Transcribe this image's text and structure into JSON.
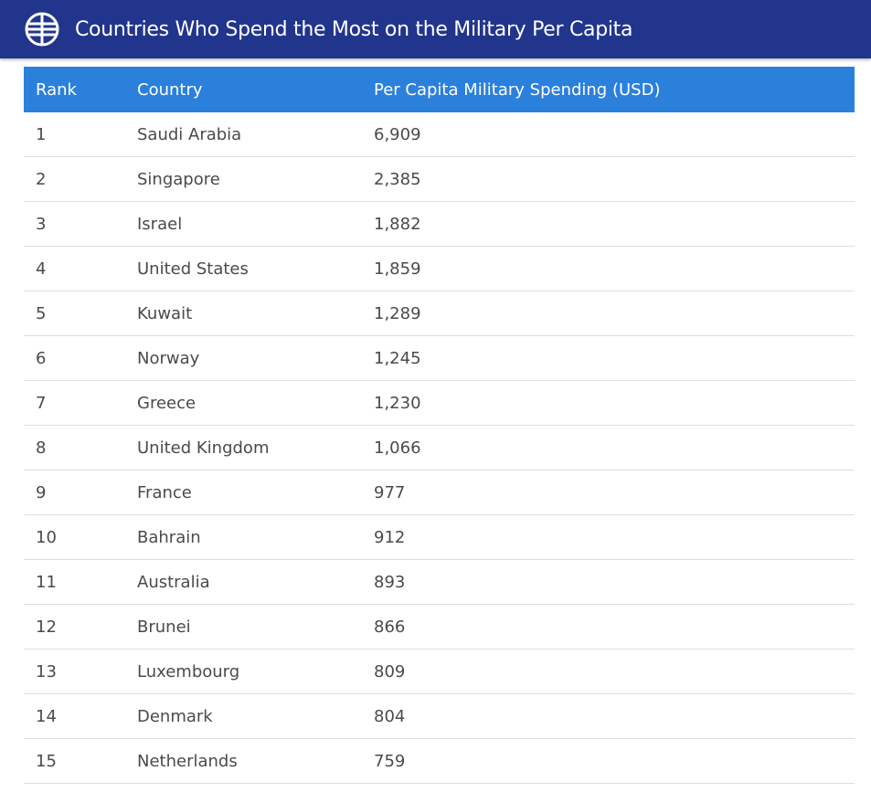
{
  "header": {
    "title": "Countries Who Spend the Most on the Military Per Capita",
    "icon": "globe-icon"
  },
  "table": {
    "columns": [
      "Rank",
      "Country",
      "Per Capita Military Spending (USD)"
    ],
    "rows": [
      [
        "1",
        "Saudi Arabia",
        "6,909"
      ],
      [
        "2",
        "Singapore",
        "2,385"
      ],
      [
        "3",
        "Israel",
        "1,882"
      ],
      [
        "4",
        "United States",
        "1,859"
      ],
      [
        "5",
        "Kuwait",
        "1,289"
      ],
      [
        "6",
        "Norway",
        "1,245"
      ],
      [
        "7",
        "Greece",
        "1,230"
      ],
      [
        "8",
        "United Kingdom",
        "1,066"
      ],
      [
        "9",
        "France",
        "977"
      ],
      [
        "10",
        "Bahrain",
        "912"
      ],
      [
        "11",
        "Australia",
        "893"
      ],
      [
        "12",
        "Brunei",
        "866"
      ],
      [
        "13",
        "Luxembourg",
        "809"
      ],
      [
        "14",
        "Denmark",
        "804"
      ],
      [
        "15",
        "Netherlands",
        "759"
      ]
    ]
  }
}
